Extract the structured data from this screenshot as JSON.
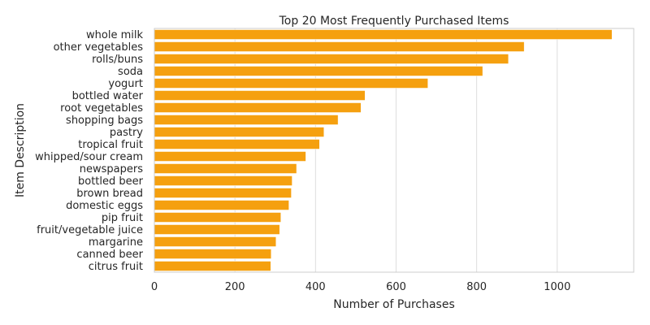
{
  "chart_data": {
    "type": "bar",
    "orientation": "horizontal",
    "title": "Top 20 Most Frequently Purchased Items",
    "xlabel": "Number of Purchases",
    "ylabel": "Item Description",
    "xlim": [
      0,
      1190
    ],
    "xticks": [
      0,
      200,
      400,
      600,
      800,
      1000
    ],
    "grid": "vertical",
    "bar_color": "#f5a00f",
    "categories": [
      "whole milk",
      "other vegetables",
      "rolls/buns",
      "soda",
      "yogurt",
      "bottled water",
      "root vegetables",
      "shopping bags",
      "pastry",
      "tropical fruit",
      "whipped/sour cream",
      "newspapers",
      "bottled beer",
      "brown bread",
      "domestic eggs",
      "pip fruit",
      "fruit/vegetable juice",
      "margarine",
      "canned beer",
      "citrus fruit"
    ],
    "values": [
      1136,
      918,
      879,
      815,
      679,
      523,
      513,
      456,
      421,
      410,
      376,
      353,
      342,
      340,
      334,
      314,
      311,
      302,
      290,
      289
    ]
  }
}
